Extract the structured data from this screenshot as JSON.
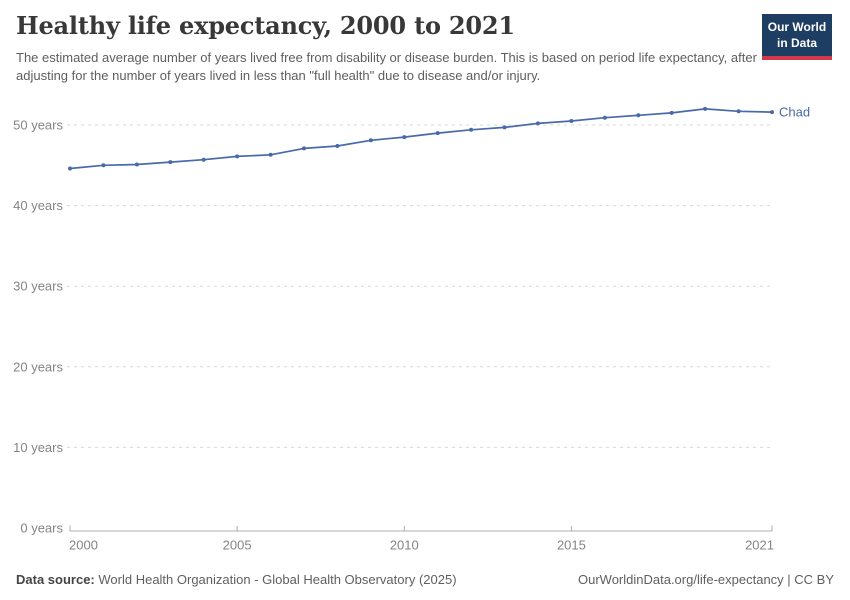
{
  "header": {
    "title": "Healthy life expectancy, 2000 to 2021",
    "subtitle": "The estimated average number of years lived free from disability or disease burden. This is based on period life expectancy, after adjusting for the number of years lived in less than \"full health\" due to disease and/or injury.",
    "logo": {
      "line1": "Our World",
      "line2": "in Data"
    }
  },
  "chart_data": {
    "type": "line",
    "title": "Healthy life expectancy, 2000 to 2021",
    "x": [
      2000,
      2001,
      2002,
      2003,
      2004,
      2005,
      2006,
      2007,
      2008,
      2009,
      2010,
      2011,
      2012,
      2013,
      2014,
      2015,
      2016,
      2017,
      2018,
      2019,
      2020,
      2021
    ],
    "series": [
      {
        "name": "Chad",
        "color": "#4a69a8",
        "values": [
          44.6,
          45.0,
          45.1,
          45.4,
          45.7,
          46.1,
          46.3,
          47.1,
          47.4,
          48.1,
          48.5,
          49.0,
          49.4,
          49.7,
          50.2,
          50.5,
          50.9,
          51.2,
          51.5,
          52.0,
          51.7,
          51.6
        ]
      }
    ],
    "xticks": [
      {
        "value": 2000,
        "label": "2000"
      },
      {
        "value": 2005,
        "label": "2005"
      },
      {
        "value": 2010,
        "label": "2010"
      },
      {
        "value": 2015,
        "label": "2015"
      },
      {
        "value": 2021,
        "label": "2021"
      }
    ],
    "yticks": [
      {
        "value": 0,
        "label": "0 years"
      },
      {
        "value": 10,
        "label": "10 years"
      },
      {
        "value": 20,
        "label": "20 years"
      },
      {
        "value": 30,
        "label": "30 years"
      },
      {
        "value": 40,
        "label": "40 years"
      },
      {
        "value": 50,
        "label": "50 years"
      }
    ],
    "xlabel": "",
    "ylabel": "",
    "ylim": [
      0,
      52.5
    ],
    "grid": "horizontal-dashed",
    "legend": "end-of-line-label"
  },
  "footer": {
    "source_label": "Data source:",
    "source_text": "World Health Organization - Global Health Observatory (2025)",
    "link_text": "OurWorldinData.org/life-expectancy | CC BY"
  },
  "colors": {
    "line": "#4a69a8",
    "logo_background": "#1d3d63",
    "logo_stripe": "#d23a47",
    "grid": "#d9d9d9",
    "tick_text": "#848484"
  }
}
